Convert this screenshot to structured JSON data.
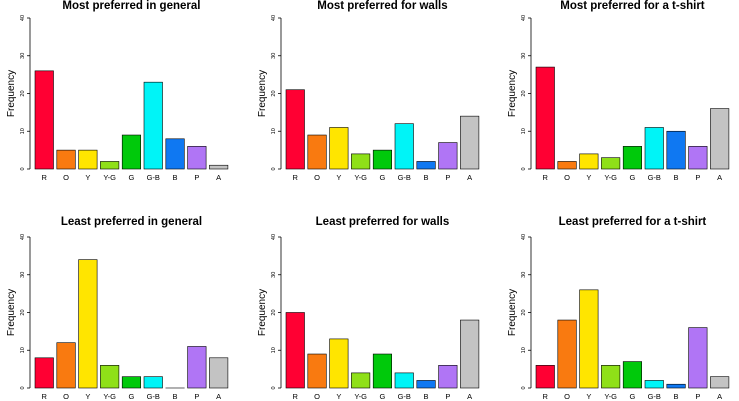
{
  "colors": {
    "R": "#ff0033",
    "O": "#f97a10",
    "Y": "#ffe500",
    "Y-G": "#8fe018",
    "G": "#00c90b",
    "G-B": "#00f4f7",
    "B": "#0f78f2",
    "P": "#b075f5",
    "A": "#c3c3c3"
  },
  "chart_data": [
    {
      "type": "bar",
      "title": "Most preferred in general",
      "ylabel": "Frequency",
      "xlabel": "",
      "ylim": [
        0,
        40
      ],
      "yticks": [
        0,
        10,
        20,
        30,
        40
      ],
      "categories": [
        "R",
        "O",
        "Y",
        "Y-G",
        "G",
        "G-B",
        "B",
        "P",
        "A"
      ],
      "values": [
        26,
        5,
        5,
        2,
        9,
        23,
        8,
        6,
        1
      ]
    },
    {
      "type": "bar",
      "title": "Most preferred for walls",
      "ylabel": "Frequency",
      "xlabel": "",
      "ylim": [
        0,
        40
      ],
      "yticks": [
        0,
        10,
        20,
        30,
        40
      ],
      "categories": [
        "R",
        "O",
        "Y",
        "Y-G",
        "G",
        "G-B",
        "B",
        "P",
        "A"
      ],
      "values": [
        21,
        9,
        11,
        4,
        5,
        12,
        2,
        7,
        14
      ]
    },
    {
      "type": "bar",
      "title": "Most preferred for a t-shirt",
      "ylabel": "Frequency",
      "xlabel": "",
      "ylim": [
        0,
        40
      ],
      "yticks": [
        0,
        10,
        20,
        30,
        40
      ],
      "categories": [
        "R",
        "O",
        "Y",
        "Y-G",
        "G",
        "G-B",
        "B",
        "P",
        "A"
      ],
      "values": [
        27,
        2,
        4,
        3,
        6,
        11,
        10,
        6,
        16
      ]
    },
    {
      "type": "bar",
      "title": "Least preferred in general",
      "ylabel": "Frequency",
      "xlabel": "",
      "ylim": [
        0,
        40
      ],
      "yticks": [
        0,
        10,
        20,
        30,
        40
      ],
      "categories": [
        "R",
        "O",
        "Y",
        "Y-G",
        "G",
        "G-B",
        "B",
        "P",
        "A"
      ],
      "values": [
        8,
        12,
        34,
        6,
        3,
        3,
        0,
        11,
        8
      ]
    },
    {
      "type": "bar",
      "title": "Least preferred for walls",
      "ylabel": "Frequency",
      "xlabel": "",
      "ylim": [
        0,
        40
      ],
      "yticks": [
        0,
        10,
        20,
        30,
        40
      ],
      "categories": [
        "R",
        "O",
        "Y",
        "Y-G",
        "G",
        "G-B",
        "B",
        "P",
        "A"
      ],
      "values": [
        20,
        9,
        13,
        4,
        9,
        4,
        2,
        6,
        18
      ]
    },
    {
      "type": "bar",
      "title": "Least preferred for a t-shirt",
      "ylabel": "Frequency",
      "xlabel": "",
      "ylim": [
        0,
        40
      ],
      "yticks": [
        0,
        10,
        20,
        30,
        40
      ],
      "categories": [
        "R",
        "O",
        "Y",
        "Y-G",
        "G",
        "G-B",
        "B",
        "P",
        "A"
      ],
      "values": [
        6,
        18,
        26,
        6,
        7,
        2,
        1,
        16,
        3
      ]
    }
  ]
}
